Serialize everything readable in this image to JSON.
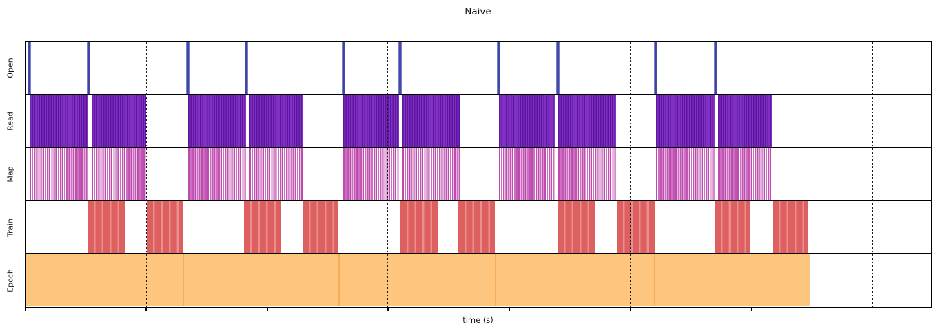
{
  "chart_data": {
    "type": "timeline",
    "title": "Naive",
    "xlabel": "time (s)",
    "legend": "none",
    "x_axis": {
      "tick_labels": [],
      "tick_positions_percent": [
        0,
        13.33,
        26.7,
        40.0,
        53.36,
        66.73,
        80.09,
        93.46
      ],
      "gridlines": "dotted-vertical",
      "range_percent": [
        0,
        100
      ]
    },
    "colors": {
      "open_spike": "#3c44a6",
      "read": "#7a2bbd",
      "map": "#c457b4",
      "train": "#df5f5f",
      "epoch": "#fdc57e",
      "epoch_divider": "#f8ab51",
      "gridline": "#1a1a1a",
      "frame": "#000000"
    },
    "rows": [
      {
        "label": "Open",
        "mark": "spikes",
        "events_percent": [
          0.49,
          6.99,
          17.96,
          24.42,
          35.13,
          41.36,
          52.3,
          58.83,
          69.62,
          76.22
        ]
      },
      {
        "label": "Read",
        "mark": "striped-intervals",
        "intervals_percent": [
          [
            0.49,
            6.95
          ],
          [
            7.33,
            13.33
          ],
          [
            17.96,
            24.42
          ],
          [
            24.8,
            30.65
          ],
          [
            35.13,
            41.28
          ],
          [
            41.66,
            48.04
          ],
          [
            52.3,
            58.53
          ],
          [
            58.83,
            65.21
          ],
          [
            69.62,
            76.15
          ],
          [
            76.53,
            82.45
          ]
        ]
      },
      {
        "label": "Map",
        "mark": "sparse-striped-intervals",
        "intervals_percent": [
          [
            0.49,
            6.95
          ],
          [
            7.33,
            13.33
          ],
          [
            17.96,
            24.42
          ],
          [
            24.8,
            30.65
          ],
          [
            35.13,
            41.28
          ],
          [
            41.66,
            48.04
          ],
          [
            52.3,
            58.53
          ],
          [
            58.83,
            65.21
          ],
          [
            69.62,
            76.15
          ],
          [
            76.53,
            82.45
          ]
        ]
      },
      {
        "label": "Train",
        "mark": "block-intervals",
        "intervals_percent": [
          [
            6.87,
            11.05
          ],
          [
            13.41,
            17.36
          ],
          [
            24.12,
            28.3
          ],
          [
            30.65,
            34.6
          ],
          [
            41.44,
            45.61
          ],
          [
            47.82,
            51.84
          ],
          [
            58.75,
            62.93
          ],
          [
            65.29,
            69.46
          ],
          [
            76.15,
            80.02
          ],
          [
            82.52,
            86.47
          ]
        ]
      },
      {
        "label": "Epoch",
        "mark": "contiguous-segments",
        "intervals_percent": [
          [
            0.11,
            17.36
          ],
          [
            17.36,
            34.6
          ],
          [
            34.6,
            51.84
          ],
          [
            51.84,
            69.39
          ],
          [
            69.39,
            86.62
          ]
        ]
      }
    ]
  }
}
